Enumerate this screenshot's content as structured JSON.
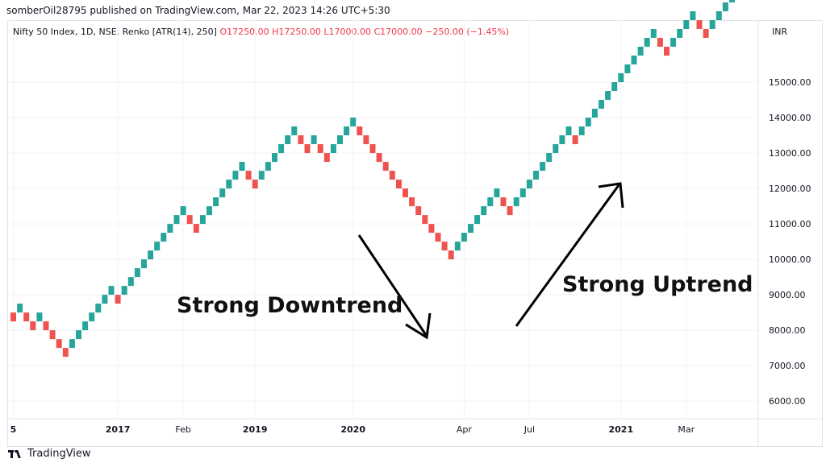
{
  "header": {
    "published": "somberOil28795 published on TradingView.com, Mar 22, 2023 14:26 UTC+5:30"
  },
  "legend": {
    "symbol": "Nifty 50 Index, 1D, NSE, Renko [ATR(14), 250]",
    "ohlc": "O17250.00  H17250.00  L17000.00  C17000.00  −250.00 (−1.45%)"
  },
  "currency": "INR",
  "annotations": {
    "downtrend": "Strong Downtrend",
    "uptrend": "Strong Uptrend"
  },
  "footer": {
    "brand": "TradingView"
  },
  "colors": {
    "up": "#26a69a",
    "down": "#ef5350",
    "axis_text": "#131722",
    "grid": "#f0f3fa"
  },
  "chart_data": {
    "type": "renko",
    "box_size": 250,
    "y_axis_ticks": [
      6000,
      7000,
      8000,
      9000,
      10000,
      11000,
      12000,
      13000,
      14000,
      15000
    ],
    "y_tick_labels": [
      "6000.00",
      "7000.00",
      "8000.00",
      "9000.00",
      "10000.00",
      "11000.00",
      "12000.00",
      "13000.00",
      "14000.00",
      "15000.00"
    ],
    "ylim": [
      5550,
      16750
    ],
    "x_tick_labels": [
      {
        "label": "5",
        "brick": 0,
        "bold": true
      },
      {
        "label": "2017",
        "brick": 16,
        "bold": true
      },
      {
        "label": "Feb",
        "brick": 26,
        "bold": false
      },
      {
        "label": "2019",
        "brick": 37,
        "bold": true
      },
      {
        "label": "2020",
        "brick": 52,
        "bold": true
      },
      {
        "label": "Apr",
        "brick": 69,
        "bold": false
      },
      {
        "label": "Jul",
        "brick": 79,
        "bold": false
      },
      {
        "label": "2021",
        "brick": 93,
        "bold": true
      },
      {
        "label": "Mar",
        "brick": 103,
        "bold": false
      }
    ],
    "start_price": 8500,
    "bricks": [
      "d",
      "u",
      "d",
      "d",
      "u",
      "d",
      "d",
      "d",
      "d",
      "u",
      "u",
      "u",
      "u",
      "u",
      "u",
      "u",
      "d",
      "u",
      "u",
      "u",
      "u",
      "u",
      "u",
      "u",
      "u",
      "u",
      "u",
      "d",
      "d",
      "u",
      "u",
      "u",
      "u",
      "u",
      "u",
      "u",
      "d",
      "d",
      "u",
      "u",
      "u",
      "u",
      "u",
      "u",
      "d",
      "d",
      "u",
      "d",
      "d",
      "u",
      "u",
      "u",
      "u",
      "d",
      "d",
      "d",
      "d",
      "d",
      "d",
      "d",
      "d",
      "d",
      "d",
      "d",
      "d",
      "d",
      "d",
      "d",
      "u",
      "u",
      "u",
      "u",
      "u",
      "u",
      "u",
      "d",
      "d",
      "u",
      "u",
      "u",
      "u",
      "u",
      "u",
      "u",
      "u",
      "u",
      "d",
      "u",
      "u",
      "u",
      "u",
      "u",
      "u",
      "u",
      "u",
      "u",
      "u",
      "u",
      "u",
      "d",
      "d",
      "u",
      "u",
      "u",
      "u",
      "d",
      "d",
      "u",
      "u",
      "u",
      "u",
      "u",
      "u",
      "u",
      "u"
    ]
  }
}
